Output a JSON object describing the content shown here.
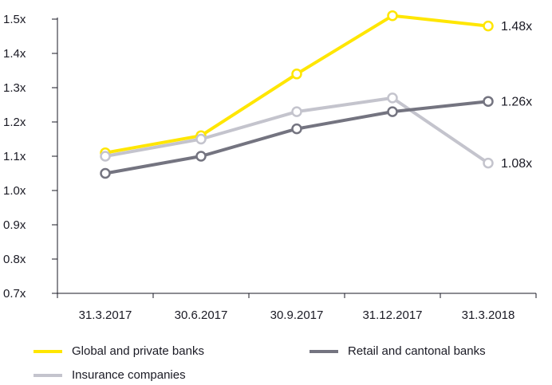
{
  "chart_data": {
    "type": "line",
    "categories": [
      "31.3.2017",
      "30.6.2017",
      "30.9.2017",
      "31.12.2017",
      "31.3.2018"
    ],
    "ylim": [
      0.7,
      1.5
    ],
    "yticks": [
      "0.7x",
      "0.8x",
      "0.9x",
      "1.0x",
      "1.1x",
      "1.2x",
      "1.3x",
      "1.4x",
      "1.5x"
    ],
    "ytick_values": [
      0.7,
      0.8,
      0.9,
      1.0,
      1.1,
      1.2,
      1.3,
      1.4,
      1.5
    ],
    "grid": false,
    "legend_position": "bottom",
    "series": [
      {
        "name": "Global and private banks",
        "color": "#ffe600",
        "values": [
          1.11,
          1.16,
          1.34,
          1.51,
          1.48
        ],
        "end_label": "1.48x"
      },
      {
        "name": "Retail and cantonal banks",
        "color": "#747480",
        "values": [
          1.05,
          1.1,
          1.18,
          1.23,
          1.26
        ],
        "end_label": "1.26x"
      },
      {
        "name": "Insurance companies",
        "color": "#c4c4cd",
        "values": [
          1.1,
          1.15,
          1.23,
          1.27,
          1.08
        ],
        "end_label": "1.08x"
      }
    ],
    "draw_order": [
      0,
      2,
      1
    ]
  }
}
